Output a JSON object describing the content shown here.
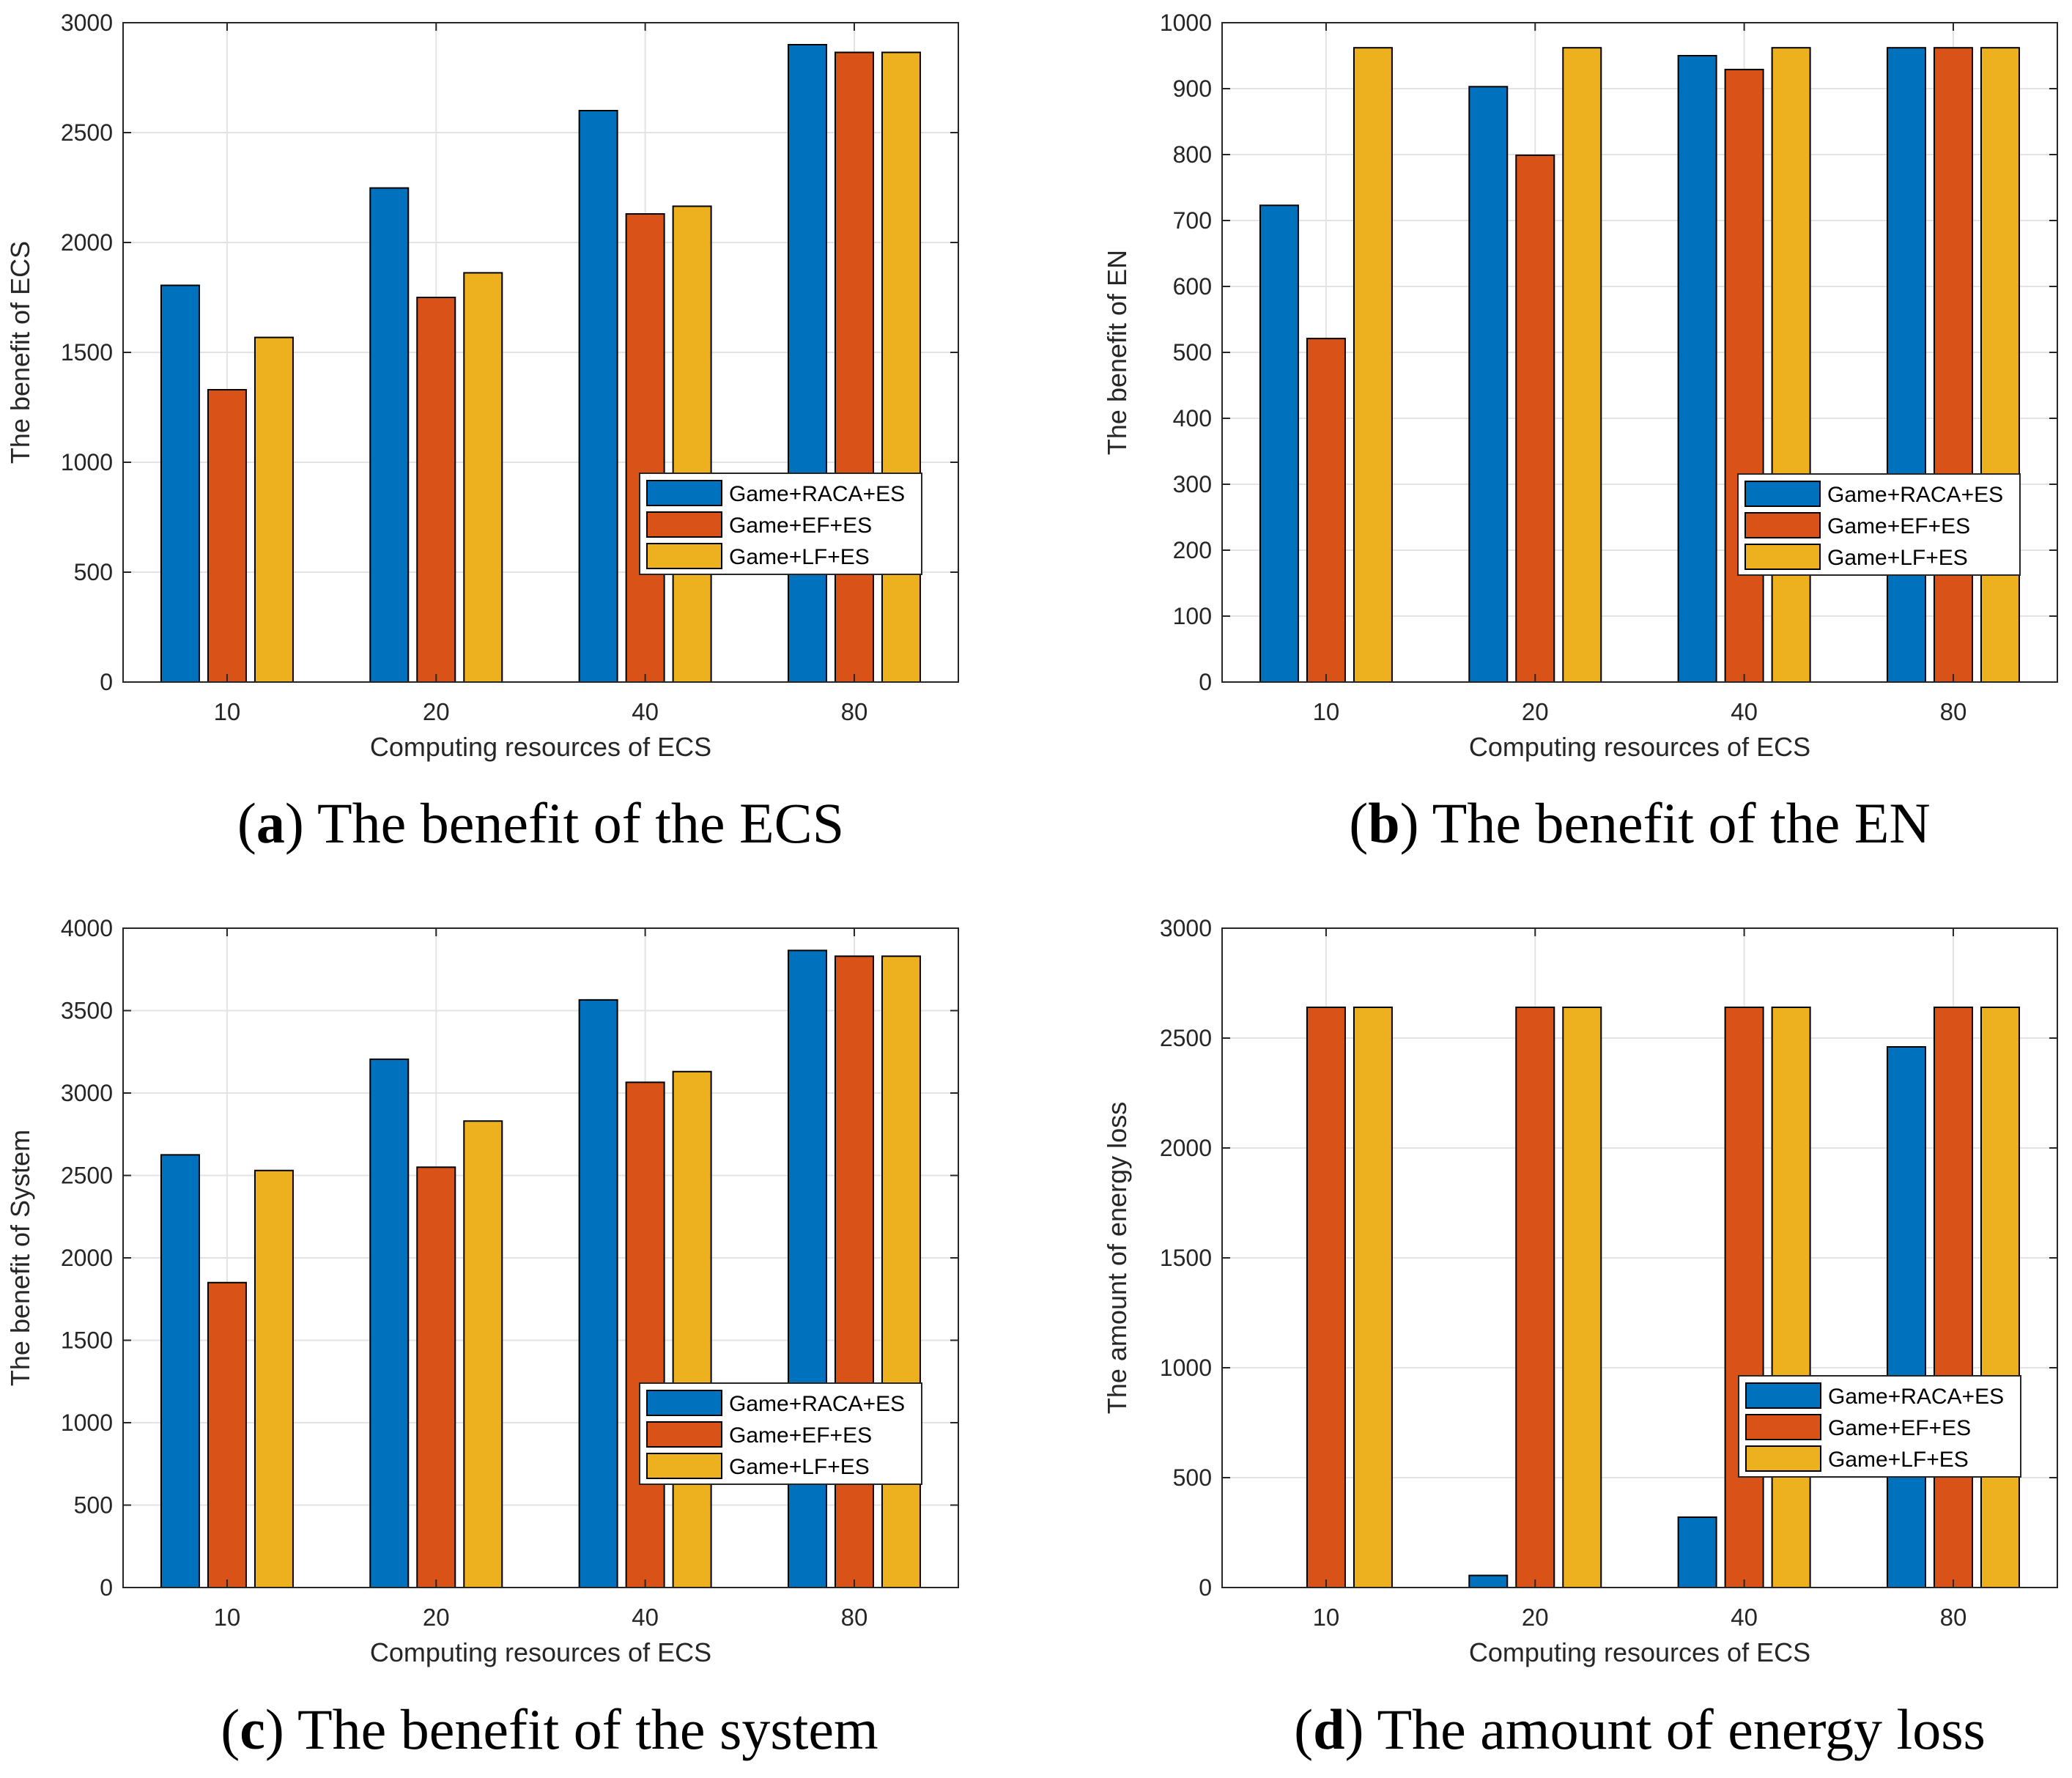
{
  "colors": {
    "series": [
      "#0072BD",
      "#D95319",
      "#EDB120"
    ],
    "grid": "#e3e3e3",
    "axis": "#262626",
    "bar_edge": "#000000"
  },
  "chart_data": [
    {
      "type": "bar",
      "title": "",
      "caption_letter": "a",
      "caption_text": " The benefit of the ECS",
      "xlabel": "Computing resources of ECS",
      "ylabel": "The benefit of ECS",
      "categories": [
        "10",
        "20",
        "40",
        "80"
      ],
      "ylim": [
        0,
        3000
      ],
      "yticks": [
        0,
        500,
        1000,
        1500,
        2000,
        2500,
        3000
      ],
      "grid": true,
      "legend_position": "center-right",
      "series": [
        {
          "name": "Game+RACA+ES",
          "values": [
            1805,
            2248,
            2600,
            2900
          ]
        },
        {
          "name": "Game+EF+ES",
          "values": [
            1330,
            1750,
            2130,
            2865
          ]
        },
        {
          "name": "Game+LF+ES",
          "values": [
            1568,
            1862,
            2165,
            2865
          ]
        }
      ]
    },
    {
      "type": "bar",
      "title": "",
      "caption_letter": "b",
      "caption_text": " The benefit of the EN",
      "xlabel": "Computing resources of ECS",
      "ylabel": "The benefit of EN",
      "categories": [
        "10",
        "20",
        "40",
        "80"
      ],
      "ylim": [
        0,
        1000
      ],
      "yticks": [
        0,
        100,
        200,
        300,
        400,
        500,
        600,
        700,
        800,
        900,
        1000
      ],
      "grid": true,
      "legend_position": "center-right",
      "series": [
        {
          "name": "Game+RACA+ES",
          "values": [
            723,
            903,
            950,
            962
          ]
        },
        {
          "name": "Game+EF+ES",
          "values": [
            521,
            799,
            929,
            962
          ]
        },
        {
          "name": "Game+LF+ES",
          "values": [
            962,
            962,
            962,
            962
          ]
        }
      ]
    },
    {
      "type": "bar",
      "title": "",
      "caption_letter": "c",
      "caption_text": " The benefit of the system",
      "xlabel": "Computing resources of ECS",
      "ylabel": "The benefit of System",
      "categories": [
        "10",
        "20",
        "40",
        "80"
      ],
      "ylim": [
        0,
        4000
      ],
      "yticks": [
        0,
        500,
        1000,
        1500,
        2000,
        2500,
        3000,
        3500,
        4000
      ],
      "grid": true,
      "legend_position": "center-right",
      "series": [
        {
          "name": "Game+RACA+ES",
          "values": [
            2625,
            3205,
            3565,
            3865
          ]
        },
        {
          "name": "Game+EF+ES",
          "values": [
            1850,
            2550,
            3065,
            3830
          ]
        },
        {
          "name": "Game+LF+ES",
          "values": [
            2530,
            2830,
            3130,
            3830
          ]
        }
      ]
    },
    {
      "type": "bar",
      "title": "",
      "caption_letter": "d",
      "caption_text": " The amount of energy loss",
      "xlabel": "Computing resources of ECS",
      "ylabel": "The amount of energy loss",
      "categories": [
        "10",
        "20",
        "40",
        "80"
      ],
      "ylim": [
        0,
        3000
      ],
      "yticks": [
        0,
        500,
        1000,
        1500,
        2000,
        2500,
        3000
      ],
      "grid": true,
      "legend_position": "center-right",
      "series": [
        {
          "name": "Game+RACA+ES",
          "values": [
            0,
            55,
            320,
            2460
          ]
        },
        {
          "name": "Game+EF+ES",
          "values": [
            2640,
            2640,
            2640,
            2640
          ]
        },
        {
          "name": "Game+LF+ES",
          "values": [
            2640,
            2640,
            2640,
            2640
          ]
        }
      ]
    }
  ]
}
